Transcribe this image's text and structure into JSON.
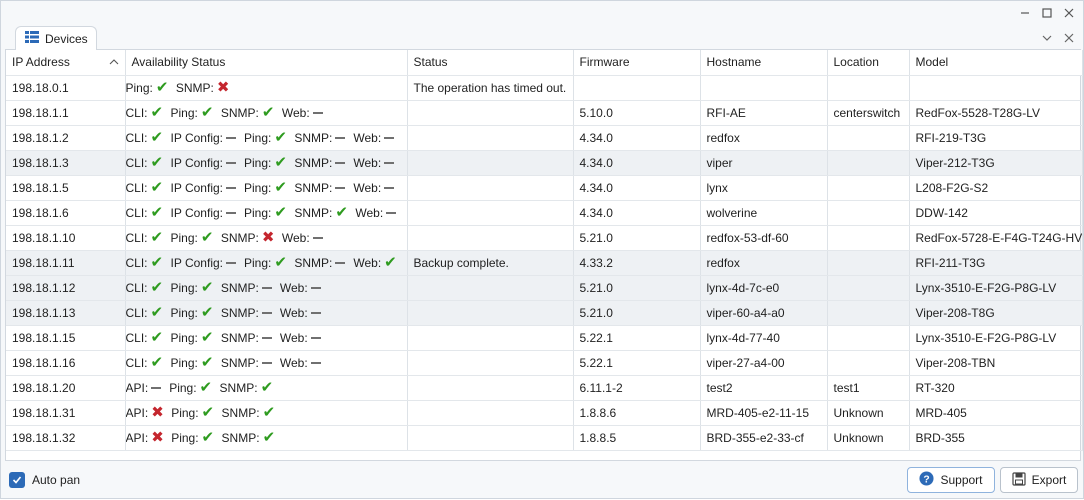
{
  "tab": {
    "label": "Devices",
    "icon": "grid-icon"
  },
  "columns": [
    "IP Address",
    "Availability Status",
    "Status",
    "Firmware",
    "Hostname",
    "Location",
    "Model"
  ],
  "rows": [
    {
      "ip": "198.18.0.1",
      "avail": [
        [
          "Ping:",
          "ok"
        ],
        [
          "SNMP:",
          "bad"
        ]
      ],
      "status": "The operation has timed out.",
      "firmware": "",
      "hostname": "",
      "location": "",
      "model": ""
    },
    {
      "ip": "198.18.1.1",
      "avail": [
        [
          "CLI:",
          "ok"
        ],
        [
          "Ping:",
          "ok"
        ],
        [
          "SNMP:",
          "ok"
        ],
        [
          "Web:",
          "none"
        ]
      ],
      "status": "",
      "firmware": "5.10.0",
      "hostname": "RFI-AE",
      "location": "centerswitch",
      "model": "RedFox-5528-T28G-LV"
    },
    {
      "ip": "198.18.1.2",
      "avail": [
        [
          "CLI:",
          "ok"
        ],
        [
          "IP Config:",
          "none"
        ],
        [
          "Ping:",
          "ok"
        ],
        [
          "SNMP:",
          "none"
        ],
        [
          "Web:",
          "none"
        ]
      ],
      "status": "",
      "firmware": "4.34.0",
      "hostname": "redfox",
      "location": "",
      "model": "RFI-219-T3G"
    },
    {
      "ip": "198.18.1.3",
      "avail": [
        [
          "CLI:",
          "ok"
        ],
        [
          "IP Config:",
          "none"
        ],
        [
          "Ping:",
          "ok"
        ],
        [
          "SNMP:",
          "none"
        ],
        [
          "Web:",
          "none"
        ]
      ],
      "status": "",
      "firmware": "4.34.0",
      "hostname": "viper",
      "location": "",
      "model": "Viper-212-T3G"
    },
    {
      "ip": "198.18.1.5",
      "avail": [
        [
          "CLI:",
          "ok"
        ],
        [
          "IP Config:",
          "none"
        ],
        [
          "Ping:",
          "ok"
        ],
        [
          "SNMP:",
          "none"
        ],
        [
          "Web:",
          "none"
        ]
      ],
      "status": "",
      "firmware": "4.34.0",
      "hostname": "lynx",
      "location": "",
      "model": "L208-F2G-S2"
    },
    {
      "ip": "198.18.1.6",
      "avail": [
        [
          "CLI:",
          "ok"
        ],
        [
          "IP Config:",
          "none"
        ],
        [
          "Ping:",
          "ok"
        ],
        [
          "SNMP:",
          "ok"
        ],
        [
          "Web:",
          "none"
        ]
      ],
      "status": "",
      "firmware": "4.34.0",
      "hostname": "wolverine",
      "location": "",
      "model": "DDW-142"
    },
    {
      "ip": "198.18.1.10",
      "avail": [
        [
          "CLI:",
          "ok"
        ],
        [
          "Ping:",
          "ok"
        ],
        [
          "SNMP:",
          "bad"
        ],
        [
          "Web:",
          "none"
        ]
      ],
      "status": "",
      "firmware": "5.21.0",
      "hostname": "redfox-53-df-60",
      "location": "",
      "model": "RedFox-5728-E-F4G-T24G-HV"
    },
    {
      "ip": "198.18.1.11",
      "avail": [
        [
          "CLI:",
          "ok"
        ],
        [
          "IP Config:",
          "none"
        ],
        [
          "Ping:",
          "ok"
        ],
        [
          "SNMP:",
          "none"
        ],
        [
          "Web:",
          "ok"
        ]
      ],
      "status": "Backup complete.",
      "firmware": "4.33.2",
      "hostname": "redfox",
      "location": "",
      "model": "RFI-211-T3G"
    },
    {
      "ip": "198.18.1.12",
      "avail": [
        [
          "CLI:",
          "ok"
        ],
        [
          "Ping:",
          "ok"
        ],
        [
          "SNMP:",
          "none"
        ],
        [
          "Web:",
          "none"
        ]
      ],
      "status": "",
      "firmware": "5.21.0",
      "hostname": "lynx-4d-7c-e0",
      "location": "",
      "model": "Lynx-3510-E-F2G-P8G-LV"
    },
    {
      "ip": "198.18.1.13",
      "avail": [
        [
          "CLI:",
          "ok"
        ],
        [
          "Ping:",
          "ok"
        ],
        [
          "SNMP:",
          "none"
        ],
        [
          "Web:",
          "none"
        ]
      ],
      "status": "",
      "firmware": "5.21.0",
      "hostname": "viper-60-a4-a0",
      "location": "",
      "model": "Viper-208-T8G"
    },
    {
      "ip": "198.18.1.15",
      "avail": [
        [
          "CLI:",
          "ok"
        ],
        [
          "Ping:",
          "ok"
        ],
        [
          "SNMP:",
          "none"
        ],
        [
          "Web:",
          "none"
        ]
      ],
      "status": "",
      "firmware": "5.22.1",
      "hostname": "lynx-4d-77-40",
      "location": "",
      "model": "Lynx-3510-E-F2G-P8G-LV"
    },
    {
      "ip": "198.18.1.16",
      "avail": [
        [
          "CLI:",
          "ok"
        ],
        [
          "Ping:",
          "ok"
        ],
        [
          "SNMP:",
          "none"
        ],
        [
          "Web:",
          "none"
        ]
      ],
      "status": "",
      "firmware": "5.22.1",
      "hostname": "viper-27-a4-00",
      "location": "",
      "model": "Viper-208-TBN"
    },
    {
      "ip": "198.18.1.20",
      "avail": [
        [
          "API:",
          "none"
        ],
        [
          "Ping:",
          "ok"
        ],
        [
          "SNMP:",
          "ok"
        ]
      ],
      "status": "",
      "firmware": "6.11.1-2",
      "hostname": "test2",
      "location": "test1",
      "model": "RT-320"
    },
    {
      "ip": "198.18.1.31",
      "avail": [
        [
          "API:",
          "bad"
        ],
        [
          "Ping:",
          "ok"
        ],
        [
          "SNMP:",
          "ok"
        ]
      ],
      "status": "",
      "firmware": "1.8.8.6",
      "hostname": "MRD-405-e2-11-15",
      "location": "Unknown",
      "model": "MRD-405"
    },
    {
      "ip": "198.18.1.32",
      "avail": [
        [
          "API:",
          "bad"
        ],
        [
          "Ping:",
          "ok"
        ],
        [
          "SNMP:",
          "ok"
        ]
      ],
      "status": "",
      "firmware": "1.8.8.5",
      "hostname": "BRD-355-e2-33-cf",
      "location": "Unknown",
      "model": "BRD-355"
    }
  ],
  "alt_rows": [
    3,
    7,
    8,
    9
  ],
  "footer": {
    "autopan_label": "Auto pan",
    "support_label": "Support",
    "export_label": "Export"
  },
  "colors": {
    "ok": "#2e9b1f",
    "bad": "#c4262e",
    "accent": "#2c6ab7"
  }
}
